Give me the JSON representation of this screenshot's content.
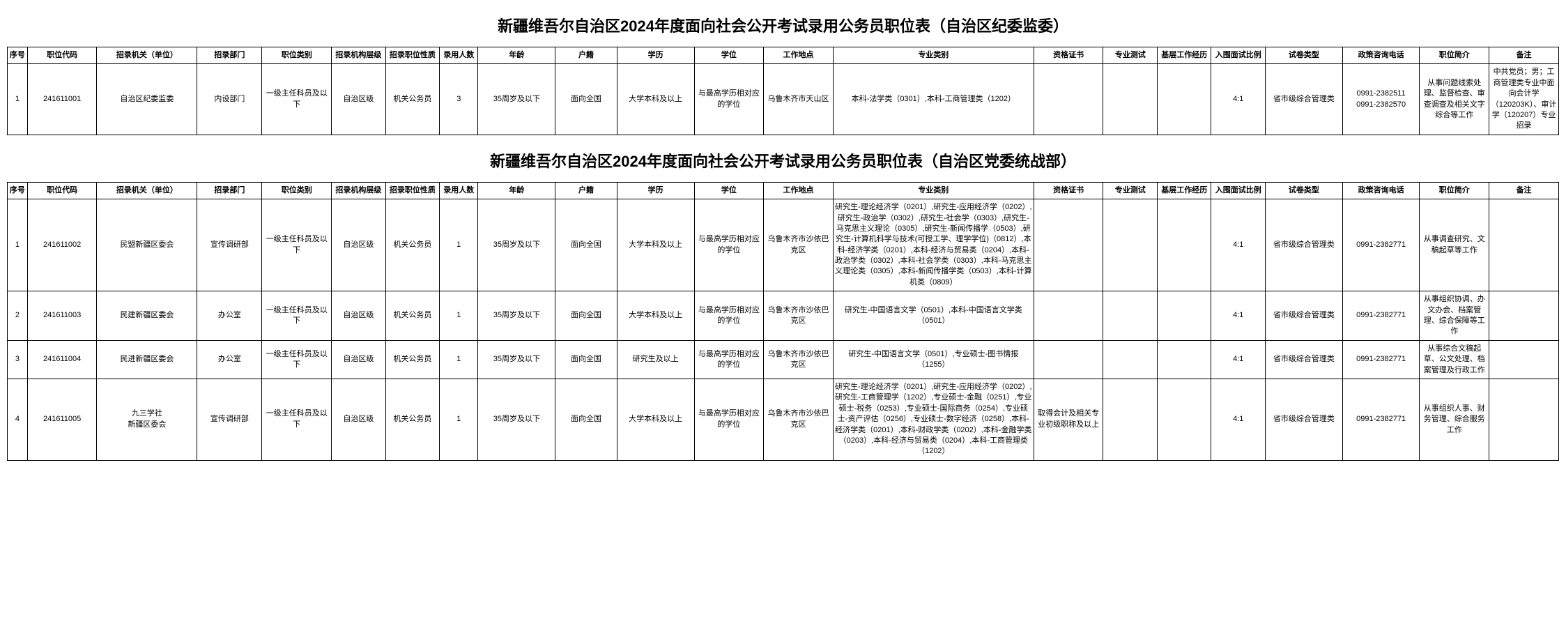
{
  "tables": [
    {
      "title": "新疆维吾尔自治区2024年度面向社会公开考试录用公务员职位表（自治区纪委监委）",
      "headers": [
        "序号",
        "职位代码",
        "招录机关（单位）",
        "招录部门",
        "职位类别",
        "招录机构层级",
        "招录职位性质",
        "录用人数",
        "年龄",
        "户籍",
        "学历",
        "学位",
        "工作地点",
        "专业类别",
        "资格证书",
        "专业测试",
        "基层工作经历",
        "入围面试比例",
        "试卷类型",
        "政策咨询电话",
        "职位简介",
        "备注"
      ],
      "rows": [
        {
          "seq": "1",
          "code": "241611001",
          "org": "自治区纪委监委",
          "dept": "内设部门",
          "type": "一级主任科员及以下",
          "level": "自治区级",
          "nature": "机关公务员",
          "num": "3",
          "age": "35周岁及以下",
          "hukou": "面向全国",
          "edu": "大学本科及以上",
          "degree": "与最高学历相对应的学位",
          "loc": "乌鲁木齐市天山区",
          "major": "本科-法学类（0301）,本科-工商管理类（1202）",
          "cert": "",
          "test": "",
          "exp": "",
          "ratio": "4:1",
          "exam": "省市级综合管理类",
          "phone": "0991-2382511\n0991-2382570",
          "brief": "从事问题线索处理、监督检查、审查调查及相关文字综合等工作",
          "note": "中共党员；男；工商管理类专业中面向会计学（120203K）、审计学（120207）专业招录"
        }
      ]
    },
    {
      "title": "新疆维吾尔自治区2024年度面向社会公开考试录用公务员职位表（自治区党委统战部）",
      "headers": [
        "序号",
        "职位代码",
        "招录机关（单位）",
        "招录部门",
        "职位类别",
        "招录机构层级",
        "招录职位性质",
        "录用人数",
        "年龄",
        "户籍",
        "学历",
        "学位",
        "工作地点",
        "专业类别",
        "资格证书",
        "专业测试",
        "基层工作经历",
        "入围面试比例",
        "试卷类型",
        "政策咨询电话",
        "职位简介",
        "备注"
      ],
      "rows": [
        {
          "seq": "1",
          "code": "241611002",
          "org": "民盟新疆区委会",
          "dept": "宣传调研部",
          "type": "一级主任科员及以下",
          "level": "自治区级",
          "nature": "机关公务员",
          "num": "1",
          "age": "35周岁及以下",
          "hukou": "面向全国",
          "edu": "大学本科及以上",
          "degree": "与最高学历相对应的学位",
          "loc": "乌鲁木齐市沙依巴克区",
          "major": "研究生-理论经济学（0201）,研究生-应用经济学（0202）,研究生-政治学（0302）,研究生-社会学（0303）,研究生-马克思主义理论（0305）,研究生-新闻传播学（0503）,研究生-计算机科学与技术(可授工学、理学学位)（0812）,本科-经济学类（0201）,本科-经济与贸易类（0204）,本科-政治学类（0302）,本科-社会学类（0303）,本科-马克思主义理论类（0305）,本科-新闻传播学类（0503）,本科-计算机类（0809）",
          "cert": "",
          "test": "",
          "exp": "",
          "ratio": "4:1",
          "exam": "省市级综合管理类",
          "phone": "0991-2382771",
          "brief": "从事调查研究、文稿起草等工作",
          "note": ""
        },
        {
          "seq": "2",
          "code": "241611003",
          "org": "民建新疆区委会",
          "dept": "办公室",
          "type": "一级主任科员及以下",
          "level": "自治区级",
          "nature": "机关公务员",
          "num": "1",
          "age": "35周岁及以下",
          "hukou": "面向全国",
          "edu": "大学本科及以上",
          "degree": "与最高学历相对应的学位",
          "loc": "乌鲁木齐市沙依巴克区",
          "major": "研究生-中国语言文学（0501）,本科-中国语言文学类（0501）",
          "cert": "",
          "test": "",
          "exp": "",
          "ratio": "4:1",
          "exam": "省市级综合管理类",
          "phone": "0991-2382771",
          "brief": "从事组织协调、办文办会、档案管理、综合保障等工作",
          "note": ""
        },
        {
          "seq": "3",
          "code": "241611004",
          "org": "民进新疆区委会",
          "dept": "办公室",
          "type": "一级主任科员及以下",
          "level": "自治区级",
          "nature": "机关公务员",
          "num": "1",
          "age": "35周岁及以下",
          "hukou": "面向全国",
          "edu": "研究生及以上",
          "degree": "与最高学历相对应的学位",
          "loc": "乌鲁木齐市沙依巴克区",
          "major": "研究生-中国语言文学（0501）,专业硕士-图书情报（1255）",
          "cert": "",
          "test": "",
          "exp": "",
          "ratio": "4:1",
          "exam": "省市级综合管理类",
          "phone": "0991-2382771",
          "brief": "从事综合文稿起草、公文处理、档案管理及行政工作",
          "note": ""
        },
        {
          "seq": "4",
          "code": "241611005",
          "org": "九三学社\n新疆区委会",
          "dept": "宣传调研部",
          "type": "一级主任科员及以下",
          "level": "自治区级",
          "nature": "机关公务员",
          "num": "1",
          "age": "35周岁及以下",
          "hukou": "面向全国",
          "edu": "大学本科及以上",
          "degree": "与最高学历相对应的学位",
          "loc": "乌鲁木齐市沙依巴克区",
          "major": "研究生-理论经济学（0201）,研究生-应用经济学（0202）,研究生-工商管理学（1202）,专业硕士-金融（0251）,专业硕士-税务（0253）,专业硕士-国际商务（0254）,专业硕士-资产评估（0256）,专业硕士-数字经济（0258）,本科-经济学类（0201）,本科-财政学类（0202）,本科-金融学类（0203）,本科-经济与贸易类（0204）,本科-工商管理类（1202）",
          "cert": "取得会计及相关专业初级职称及以上",
          "test": "",
          "exp": "",
          "ratio": "4:1",
          "exam": "省市级综合管理类",
          "phone": "0991-2382771",
          "brief": "从事组织人事、财务管理、综合服务工作",
          "note": ""
        }
      ]
    }
  ]
}
